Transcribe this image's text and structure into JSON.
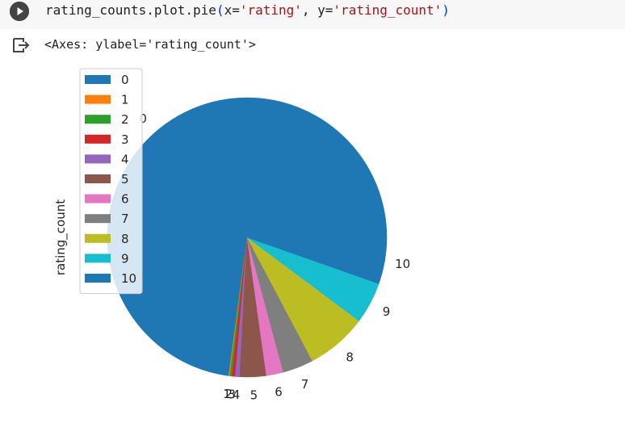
{
  "cell": {
    "code_prefix": "rating_counts.plot.pie",
    "paren_open": "(",
    "code_x": "x=",
    "code_x_value": "'rating'",
    "code_sep": ", y=",
    "code_y_value": "'rating_count'",
    "paren_close": ")"
  },
  "output": {
    "text": "<Axes: ylabel='rating_count'>"
  },
  "icons": {
    "run": "play-icon",
    "output": "output-redirect-icon"
  },
  "chart_data": {
    "type": "pie",
    "ylabel": "rating_count",
    "labels": [
      "0",
      "1",
      "2",
      "3",
      "4",
      "5",
      "6",
      "7",
      "8",
      "9",
      "10"
    ],
    "values": [
      718,
      1.2,
      2.5,
      3.7,
      5.0,
      30,
      19.5,
      35,
      69.5,
      47.5,
      53
    ],
    "colors": [
      "#1f77b4",
      "#ff7f0e",
      "#2ca02c",
      "#d62728",
      "#9467bd",
      "#8c564b",
      "#e377c2",
      "#7f7f7f",
      "#bcbd22",
      "#17becf",
      "#1f77b4"
    ],
    "startangle_deg": 0,
    "legend": {
      "placement": "upper-left",
      "entries": [
        "0",
        "1",
        "2",
        "3",
        "4",
        "5",
        "6",
        "7",
        "8",
        "9",
        "10"
      ]
    }
  }
}
